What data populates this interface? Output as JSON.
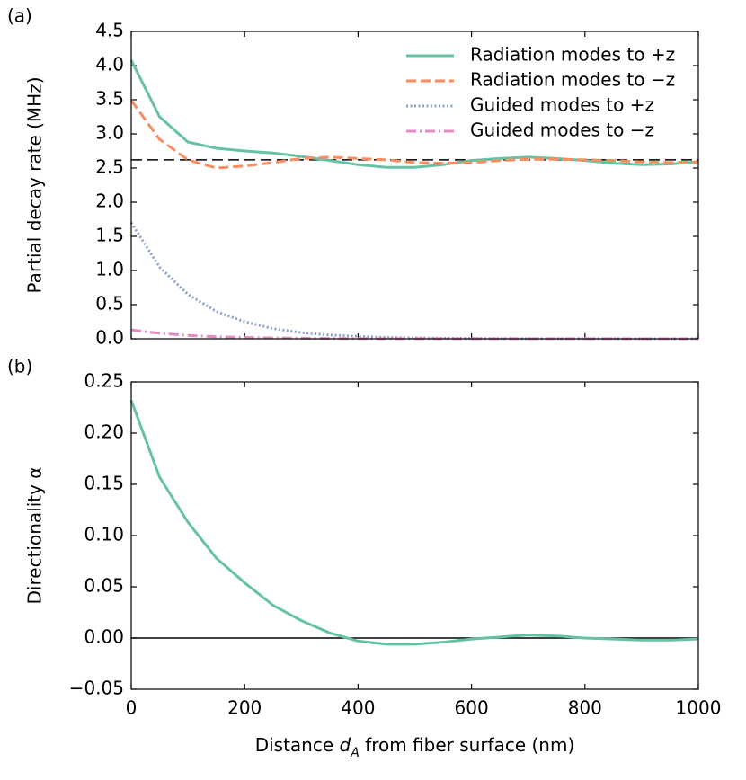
{
  "chart_data": [
    {
      "type": "line",
      "panel_label": "(a)",
      "ylabel": "Partial decay rate (MHz)",
      "x": [
        0,
        50,
        100,
        150,
        200,
        250,
        300,
        350,
        400,
        450,
        500,
        550,
        600,
        650,
        700,
        750,
        800,
        850,
        900,
        950,
        1000
      ],
      "series": [
        {
          "name": "Radiation modes to +z",
          "color": "#66c2a5",
          "style": "solid",
          "values": [
            4.08,
            3.25,
            2.88,
            2.79,
            2.75,
            2.72,
            2.67,
            2.61,
            2.55,
            2.51,
            2.51,
            2.55,
            2.61,
            2.64,
            2.66,
            2.64,
            2.61,
            2.57,
            2.55,
            2.56,
            2.59
          ]
        },
        {
          "name": "Radiation modes to −z",
          "color": "#fc8d62",
          "style": "dashed",
          "values": [
            3.49,
            2.92,
            2.62,
            2.5,
            2.53,
            2.58,
            2.64,
            2.66,
            2.64,
            2.62,
            2.58,
            2.57,
            2.58,
            2.61,
            2.63,
            2.63,
            2.62,
            2.61,
            2.59,
            2.58,
            2.59
          ]
        },
        {
          "name": "Guided modes to +z",
          "color": "#8da0cb",
          "style": "dotted",
          "values": [
            1.7,
            1.05,
            0.65,
            0.4,
            0.25,
            0.15,
            0.09,
            0.055,
            0.035,
            0.02,
            0.013,
            0.008,
            0.005,
            0.003,
            0.002,
            0.001,
            0.001,
            0.001,
            0,
            0,
            0
          ]
        },
        {
          "name": "Guided modes to −z",
          "color": "#e78ac3",
          "style": "dashdot",
          "values": [
            0.13,
            0.08,
            0.05,
            0.03,
            0.02,
            0.012,
            0.008,
            0.005,
            0.003,
            0.002,
            0.001,
            0.001,
            0,
            0,
            0,
            0,
            0,
            0,
            0,
            0,
            0
          ]
        }
      ],
      "hline": 2.62,
      "hline_style": "dashed",
      "legend": "upper right",
      "xlim": [
        0,
        1000
      ],
      "xticks": [
        0,
        200,
        400,
        600,
        800,
        1000
      ],
      "ylim": [
        0,
        4.5
      ],
      "yticks": [
        {
          "value": 0,
          "label": "0.0"
        },
        0.5,
        {
          "value": 1,
          "label": "1.0"
        },
        1.5,
        {
          "value": 2,
          "label": "2.0"
        },
        2.5,
        {
          "value": 3,
          "label": "3.0"
        },
        3.5,
        {
          "value": 4,
          "label": "4.0"
        },
        4.5
      ]
    },
    {
      "type": "line",
      "panel_label": "(b)",
      "ylabel": "Directionality α",
      "xlabel": [
        "Distance ",
        "d",
        "A",
        " from fiber surface (nm)"
      ],
      "x": [
        0,
        50,
        100,
        150,
        200,
        250,
        300,
        350,
        400,
        450,
        500,
        550,
        600,
        650,
        700,
        750,
        800,
        850,
        900,
        950,
        1000
      ],
      "series": [
        {
          "color": "#66c2a5",
          "style": "solid",
          "values": [
            0.232,
            0.157,
            0.113,
            0.078,
            0.054,
            0.032,
            0.017,
            0.005,
            -0.003,
            -0.006,
            -0.006,
            -0.004,
            -0.001,
            0.001,
            0.003,
            0.002,
            0,
            -0.001,
            -0.002,
            -0.002,
            -0.001
          ]
        }
      ],
      "hline": 0,
      "hline_style": "solid",
      "xlim": [
        0,
        1000
      ],
      "xticks": [
        0,
        200,
        400,
        600,
        800,
        1000
      ],
      "ylim": [
        -0.05,
        0.25
      ],
      "yticks": [
        {
          "value": -0.05,
          "label": "−0.05"
        },
        {
          "value": 0,
          "label": "0.00"
        },
        0.05,
        {
          "value": 0.1,
          "label": "0.10"
        },
        0.15,
        {
          "value": 0.2,
          "label": "0.20"
        },
        0.25
      ]
    }
  ]
}
